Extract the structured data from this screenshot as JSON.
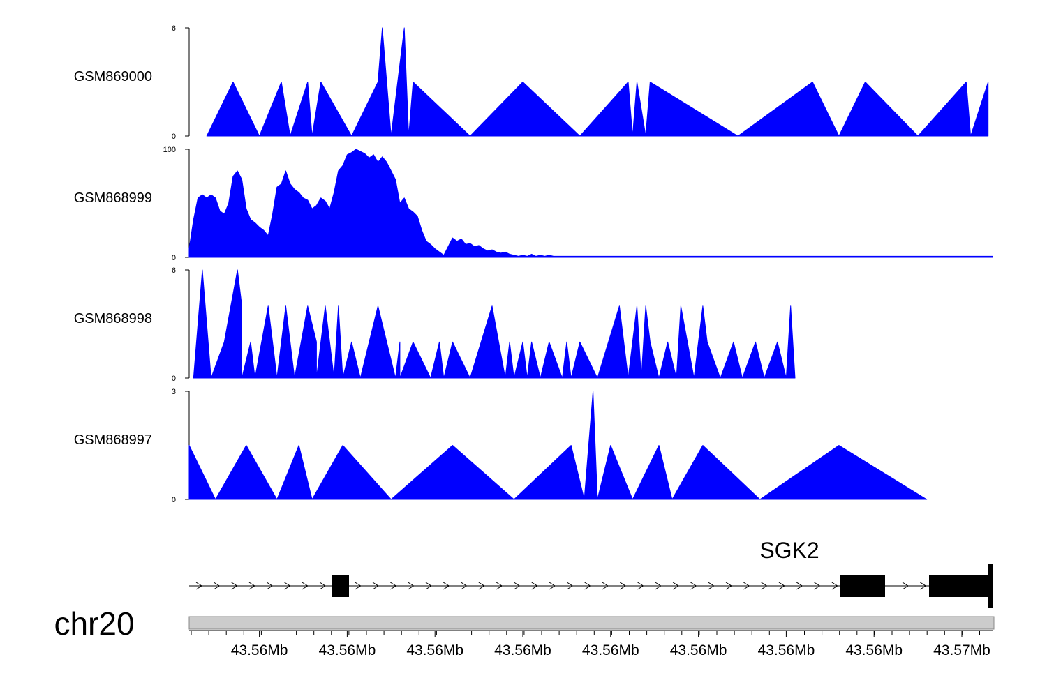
{
  "colors": {
    "signal": "#0000ff",
    "axis": "#000000",
    "gene": "#000000",
    "ideogram": "#cccccc"
  },
  "chart_data": {
    "type": "area",
    "chromosome": "chr20",
    "gene": {
      "name": "SGK2",
      "strand": "+"
    },
    "xlim_mb": [
      43.5595,
      43.5778
    ],
    "x_ticks": [
      {
        "pos_mb": 43.5611,
        "label": "43.56Mb"
      },
      {
        "pos_mb": 43.5631,
        "label": "43.56Mb"
      },
      {
        "pos_mb": 43.5651,
        "label": "43.56Mb"
      },
      {
        "pos_mb": 43.5671,
        "label": "43.56Mb"
      },
      {
        "pos_mb": 43.5691,
        "label": "43.56Mb"
      },
      {
        "pos_mb": 43.5711,
        "label": "43.56Mb"
      },
      {
        "pos_mb": 43.5731,
        "label": "43.56Mb"
      },
      {
        "pos_mb": 43.5751,
        "label": "43.56Mb"
      },
      {
        "pos_mb": 43.5771,
        "label": "43.57Mb"
      }
    ],
    "tracks": [
      {
        "name": "GSM869000",
        "ylim": [
          0,
          6
        ],
        "y_ticks": [
          "6",
          "0"
        ],
        "points": [
          [
            43.5599,
            0
          ],
          [
            43.5605,
            3
          ],
          [
            43.5611,
            0
          ],
          [
            43.5616,
            3
          ],
          [
            43.5618,
            0
          ],
          [
            43.5622,
            3
          ],
          [
            43.5623,
            0
          ],
          [
            43.5625,
            3
          ],
          [
            43.5632,
            0
          ],
          [
            43.5638,
            3
          ],
          [
            43.5639,
            6
          ],
          [
            43.5641,
            0
          ],
          [
            43.5644,
            6
          ],
          [
            43.5645,
            0
          ],
          [
            43.5646,
            3
          ],
          [
            43.5659,
            0
          ],
          [
            43.5671,
            3
          ],
          [
            43.5684,
            0
          ],
          [
            43.5695,
            3
          ],
          [
            43.5696,
            0
          ],
          [
            43.5697,
            3
          ],
          [
            43.5699,
            0
          ],
          [
            43.57,
            3
          ],
          [
            43.572,
            0
          ],
          [
            43.5737,
            3
          ],
          [
            43.5743,
            0
          ],
          [
            43.5749,
            3
          ],
          [
            43.5761,
            0
          ],
          [
            43.5772,
            3
          ],
          [
            43.5773,
            0
          ],
          [
            43.5777,
            3
          ]
        ]
      },
      {
        "name": "GSM868999",
        "ylim": [
          0,
          100
        ],
        "y_ticks": [
          "100",
          "0"
        ],
        "points": [
          [
            43.5595,
            8
          ],
          [
            43.5596,
            35
          ],
          [
            43.5597,
            55
          ],
          [
            43.5598,
            58
          ],
          [
            43.5599,
            55
          ],
          [
            43.56,
            58
          ],
          [
            43.5601,
            55
          ],
          [
            43.5602,
            43
          ],
          [
            43.5603,
            40
          ],
          [
            43.5604,
            50
          ],
          [
            43.5605,
            75
          ],
          [
            43.5606,
            80
          ],
          [
            43.5607,
            72
          ],
          [
            43.5608,
            45
          ],
          [
            43.5609,
            35
          ],
          [
            43.561,
            32
          ],
          [
            43.5611,
            28
          ],
          [
            43.5612,
            25
          ],
          [
            43.5613,
            20
          ],
          [
            43.5614,
            40
          ],
          [
            43.5615,
            65
          ],
          [
            43.5616,
            68
          ],
          [
            43.5617,
            80
          ],
          [
            43.5618,
            68
          ],
          [
            43.5619,
            63
          ],
          [
            43.562,
            60
          ],
          [
            43.5621,
            55
          ],
          [
            43.5622,
            53
          ],
          [
            43.5623,
            45
          ],
          [
            43.5624,
            48
          ],
          [
            43.5625,
            55
          ],
          [
            43.5626,
            52
          ],
          [
            43.5627,
            45
          ],
          [
            43.5628,
            60
          ],
          [
            43.5629,
            80
          ],
          [
            43.563,
            85
          ],
          [
            43.5631,
            95
          ],
          [
            43.5632,
            97
          ],
          [
            43.5633,
            100
          ],
          [
            43.5634,
            98
          ],
          [
            43.5635,
            96
          ],
          [
            43.5636,
            92
          ],
          [
            43.5637,
            95
          ],
          [
            43.5638,
            88
          ],
          [
            43.5639,
            93
          ],
          [
            43.564,
            88
          ],
          [
            43.5641,
            80
          ],
          [
            43.5642,
            72
          ],
          [
            43.5643,
            50
          ],
          [
            43.5644,
            55
          ],
          [
            43.5645,
            45
          ],
          [
            43.5646,
            42
          ],
          [
            43.5647,
            38
          ],
          [
            43.5648,
            25
          ],
          [
            43.5649,
            15
          ],
          [
            43.565,
            12
          ],
          [
            43.5651,
            8
          ],
          [
            43.5652,
            5
          ],
          [
            43.5653,
            2
          ],
          [
            43.5654,
            10
          ],
          [
            43.5655,
            18
          ],
          [
            43.5656,
            15
          ],
          [
            43.5657,
            17
          ],
          [
            43.5658,
            12
          ],
          [
            43.5659,
            13
          ],
          [
            43.566,
            10
          ],
          [
            43.5661,
            11
          ],
          [
            43.5662,
            8
          ],
          [
            43.5663,
            6
          ],
          [
            43.5664,
            7
          ],
          [
            43.5665,
            5
          ],
          [
            43.5666,
            4
          ],
          [
            43.5667,
            5
          ],
          [
            43.5668,
            3
          ],
          [
            43.5669,
            2
          ],
          [
            43.567,
            1
          ],
          [
            43.5671,
            2
          ],
          [
            43.5672,
            1
          ],
          [
            43.5673,
            3
          ],
          [
            43.5674,
            1
          ],
          [
            43.5675,
            2
          ],
          [
            43.5676,
            1
          ],
          [
            43.5677,
            2
          ],
          [
            43.5678,
            1
          ],
          [
            43.5679,
            1
          ],
          [
            43.568,
            1
          ],
          [
            43.5681,
            1
          ],
          [
            43.5682,
            1
          ],
          [
            43.5683,
            1
          ],
          [
            43.5684,
            1
          ],
          [
            43.5685,
            1
          ],
          [
            43.569,
            1
          ],
          [
            43.57,
            1
          ],
          [
            43.571,
            1
          ],
          [
            43.572,
            1
          ],
          [
            43.573,
            1
          ],
          [
            43.574,
            1
          ],
          [
            43.575,
            1
          ],
          [
            43.576,
            1
          ],
          [
            43.577,
            1
          ],
          [
            43.5778,
            1
          ]
        ]
      },
      {
        "name": "GSM868998",
        "ylim": [
          0,
          6
        ],
        "y_ticks": [
          "6",
          "0"
        ],
        "points": [
          [
            43.5596,
            0
          ],
          [
            43.5598,
            6
          ],
          [
            43.56,
            0
          ],
          [
            43.5603,
            2
          ],
          [
            43.5606,
            6
          ],
          [
            43.5607,
            4
          ],
          [
            43.5607,
            0
          ],
          [
            43.5609,
            2
          ],
          [
            43.561,
            0
          ],
          [
            43.5613,
            4
          ],
          [
            43.5615,
            0
          ],
          [
            43.5617,
            4
          ],
          [
            43.5619,
            0
          ],
          [
            43.5622,
            4
          ],
          [
            43.5624,
            2
          ],
          [
            43.5624,
            0
          ],
          [
            43.5626,
            4
          ],
          [
            43.5627,
            2
          ],
          [
            43.5628,
            0
          ],
          [
            43.5629,
            4
          ],
          [
            43.563,
            0
          ],
          [
            43.5632,
            2
          ],
          [
            43.5634,
            0
          ],
          [
            43.5636,
            2
          ],
          [
            43.5638,
            4
          ],
          [
            43.564,
            2
          ],
          [
            43.5642,
            0
          ],
          [
            43.5643,
            2
          ],
          [
            43.5643,
            0
          ],
          [
            43.5646,
            2
          ],
          [
            43.565,
            0
          ],
          [
            43.5652,
            2
          ],
          [
            43.5653,
            0
          ],
          [
            43.5655,
            2
          ],
          [
            43.5659,
            0
          ],
          [
            43.5664,
            4
          ],
          [
            43.5667,
            0
          ],
          [
            43.5668,
            2
          ],
          [
            43.5669,
            0
          ],
          [
            43.5671,
            2
          ],
          [
            43.5672,
            0
          ],
          [
            43.5673,
            2
          ],
          [
            43.5675,
            0
          ],
          [
            43.5677,
            2
          ],
          [
            43.568,
            0
          ],
          [
            43.5681,
            2
          ],
          [
            43.5682,
            0
          ],
          [
            43.5684,
            2
          ],
          [
            43.5688,
            0
          ],
          [
            43.5693,
            4
          ],
          [
            43.5695,
            0
          ],
          [
            43.5697,
            4
          ],
          [
            43.5698,
            0
          ],
          [
            43.5699,
            4
          ],
          [
            43.57,
            2
          ],
          [
            43.5702,
            0
          ],
          [
            43.5704,
            2
          ],
          [
            43.5706,
            0
          ],
          [
            43.5707,
            4
          ],
          [
            43.571,
            0
          ],
          [
            43.5712,
            4
          ],
          [
            43.5713,
            2
          ],
          [
            43.5716,
            0
          ],
          [
            43.5719,
            2
          ],
          [
            43.5721,
            0
          ],
          [
            43.5724,
            2
          ],
          [
            43.5726,
            0
          ],
          [
            43.5729,
            2
          ],
          [
            43.5731,
            0
          ],
          [
            43.5732,
            4
          ],
          [
            43.5733,
            0
          ]
        ]
      },
      {
        "name": "GSM868997",
        "ylim": [
          0,
          3
        ],
        "y_ticks": [
          "3",
          "0"
        ],
        "points": [
          [
            43.5595,
            1.5
          ],
          [
            43.5601,
            0
          ],
          [
            43.5608,
            1.5
          ],
          [
            43.5615,
            0
          ],
          [
            43.562,
            1.5
          ],
          [
            43.5623,
            0
          ],
          [
            43.563,
            1.5
          ],
          [
            43.5641,
            0
          ],
          [
            43.5655,
            1.5
          ],
          [
            43.5669,
            0
          ],
          [
            43.5682,
            1.5
          ],
          [
            43.5685,
            0
          ],
          [
            43.5687,
            3
          ],
          [
            43.5688,
            0
          ],
          [
            43.5691,
            1.5
          ],
          [
            43.5696,
            0
          ],
          [
            43.5702,
            1.5
          ],
          [
            43.5705,
            0
          ],
          [
            43.5712,
            1.5
          ],
          [
            43.5725,
            0
          ],
          [
            43.5743,
            1.5
          ],
          [
            43.5763,
            0
          ]
        ]
      }
    ]
  }
}
